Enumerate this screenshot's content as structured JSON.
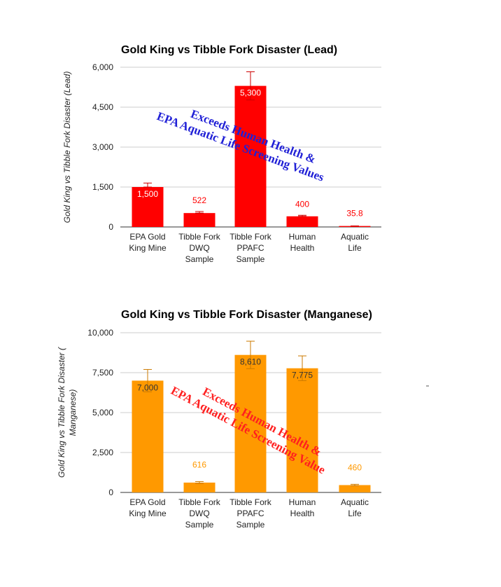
{
  "chart_data": [
    {
      "type": "bar",
      "title": "Gold King vs Tibble Fork Disaster (Lead)",
      "ylabel": "Gold King vs Tibble Fork Disaster (Lead)",
      "xlabel": "",
      "categories": [
        [
          "EPA Gold",
          "King Mine"
        ],
        [
          "Tibble Fork",
          "DWQ",
          "Sample"
        ],
        [
          "Tibble Fork",
          "PPAFC",
          "Sample"
        ],
        [
          "Human",
          "Health"
        ],
        [
          "Aquatic",
          "Life"
        ]
      ],
      "values": [
        1500,
        522,
        5300,
        400,
        35.8
      ],
      "data_labels": [
        "1,500",
        "522",
        "5,300",
        "400",
        "35.8"
      ],
      "error_high": [
        1650,
        580,
        5830,
        440,
        40
      ],
      "error_low": [
        1500,
        522,
        4770,
        400,
        35.8
      ],
      "ylim": [
        0,
        6000
      ],
      "yticks": [
        0,
        1500,
        3000,
        4500,
        6000
      ],
      "ytick_labels": [
        "0",
        "1,500",
        "3,000",
        "4,500",
        "6,000"
      ],
      "grid": true,
      "bar_color": "#ff0000",
      "label_color_inside": "#ffffff",
      "label_color_outside": "#ff0000",
      "annotation": {
        "lines": [
          "Exceeds Human Health &",
          "EPA Aquatic Life Screening Values"
        ],
        "color": "#1f1fd6"
      }
    },
    {
      "type": "bar",
      "title": "Gold King vs Tibble Fork Disaster (Manganese)",
      "ylabel": [
        "Gold King vs Tibble Fork Disaster (",
        "Manganese)"
      ],
      "xlabel": "",
      "categories": [
        [
          "EPA Gold",
          "King Mine"
        ],
        [
          "Tibble Fork",
          "DWQ",
          "Sample"
        ],
        [
          "Tibble Fork",
          "PPAFC",
          "Sample"
        ],
        [
          "Human",
          "Health"
        ],
        [
          "Aquatic",
          "Life"
        ]
      ],
      "values": [
        7000,
        616,
        8610,
        7775,
        460
      ],
      "data_labels": [
        "7,000",
        "616",
        "8,610",
        "7,775",
        "460"
      ],
      "error_high": [
        7700,
        680,
        9470,
        8550,
        510
      ],
      "error_low": [
        6300,
        560,
        7750,
        7000,
        420
      ],
      "ylim": [
        0,
        10000
      ],
      "yticks": [
        0,
        2500,
        5000,
        7500,
        10000
      ],
      "ytick_labels": [
        "0",
        "2,500",
        "5,000",
        "7,500",
        "10,000"
      ],
      "grid": true,
      "bar_color": "#ff9900",
      "label_color_inside": "#333333",
      "label_color_outside": "#ff9900",
      "annotation": {
        "lines": [
          "Exceeds Human Health &",
          "EPA Aquatic Life Screening Value"
        ],
        "color": "#ff1f1f"
      }
    }
  ]
}
